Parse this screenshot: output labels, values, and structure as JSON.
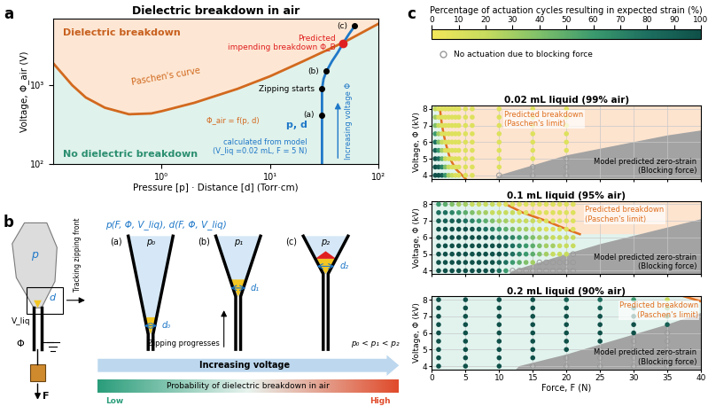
{
  "figure": {
    "panel_labels": [
      "a",
      "b",
      "c"
    ]
  },
  "chart_data": [
    {
      "type": "line",
      "title": "Dielectric breakdown in air",
      "xlabel": "Pressure [p] · Distance [d] (Torr·cm)",
      "ylabel": "Voltage, Φ_air (V)",
      "log": true,
      "grid": false,
      "xlim": [
        0.1,
        100
      ],
      "ylim": [
        100,
        7000
      ],
      "xticks": [
        {
          "value": 1,
          "label": "10⁰"
        },
        {
          "value": 10,
          "label": "10¹"
        },
        {
          "value": 100,
          "label": "10²"
        }
      ],
      "yticks": [
        {
          "value": 100,
          "label": "10²"
        },
        {
          "value": 1000,
          "label": "10³"
        }
      ],
      "regions": {
        "above": {
          "text": "Dielectric breakdown",
          "color": "#fde7d4",
          "text_color": "#c8601e"
        },
        "below": {
          "text": "No dielectric breakdown",
          "color": "#e0f2ec",
          "text_color": "#2b8f70"
        }
      },
      "series": [
        {
          "name": "Paschen's curve",
          "note": "Φ_air = f(p, d)",
          "color": "#d2691e",
          "x": [
            0.1,
            0.15,
            0.2,
            0.3,
            0.5,
            0.8,
            1,
            2,
            5,
            10,
            20,
            50,
            100
          ],
          "values": [
            1900,
            1000,
            700,
            520,
            430,
            440,
            470,
            600,
            900,
            1300,
            2000,
            3600,
            6000
          ]
        },
        {
          "name": "p, d",
          "note": "calculated from model\n(V_liq =0.02 mL, F = 5 N)",
          "color": "#1f78c8",
          "x": [
            30,
            30,
            30,
            31,
            33,
            37,
            42,
            47,
            53,
            60
          ],
          "values": [
            100,
            400,
            900,
            1200,
            1500,
            2000,
            2600,
            3400,
            4400,
            5600
          ]
        }
      ],
      "points": [
        {
          "label": "(a)",
          "x": 30,
          "y": 420,
          "color": "#000000"
        },
        {
          "label": "Zipping starts",
          "x": 30,
          "y": 900,
          "color": "#000000"
        },
        {
          "label": "(b)",
          "x": 33,
          "y": 1500,
          "color": "#000000"
        },
        {
          "label": "Predicted\nimpending breakdown Φ_B",
          "x": 47,
          "y": 3400,
          "color": "#e02020"
        },
        {
          "label": "(c)",
          "x": 60,
          "y": 5600,
          "color": "#000000"
        }
      ],
      "arrow_text": "Increasing voltage Φ"
    },
    {
      "type": "scatter",
      "title": "0.02 mL liquid (99% air)",
      "ylabel": "Voltage, Φ (kV)",
      "xlim": [
        0,
        40
      ],
      "ylim": [
        3.8,
        8.2
      ],
      "xticks": [
        0,
        5,
        10,
        15,
        20,
        25,
        30,
        35,
        40
      ],
      "yticks": [
        4,
        5,
        6,
        7,
        8
      ],
      "grid": true,
      "tick_labels": "y",
      "background": "#e2f3ee",
      "x": [
        0.5,
        1,
        1.5,
        2,
        2.5,
        3,
        3.5,
        4,
        5,
        6,
        10,
        15,
        20
      ],
      "y": [
        4,
        4.5,
        5,
        5.5,
        6,
        6.5,
        7,
        7.5,
        8
      ],
      "values": [
        [
          100,
          100,
          90,
          60,
          30,
          20,
          10,
          10,
          10,
          10,
          null,
          null,
          null
        ],
        [
          100,
          90,
          70,
          40,
          20,
          10,
          10,
          10,
          10,
          10,
          10,
          null,
          null
        ],
        [
          100,
          80,
          50,
          20,
          10,
          10,
          10,
          10,
          10,
          10,
          10,
          10,
          null
        ],
        [
          90,
          60,
          30,
          10,
          10,
          10,
          10,
          10,
          10,
          10,
          10,
          10,
          10
        ],
        [
          80,
          40,
          20,
          10,
          10,
          10,
          10,
          10,
          10,
          10,
          10,
          10,
          10
        ],
        [
          60,
          30,
          10,
          10,
          10,
          10,
          10,
          10,
          10,
          10,
          10,
          10,
          10
        ],
        [
          40,
          20,
          10,
          10,
          10,
          10,
          10,
          10,
          10,
          10,
          10,
          10,
          10
        ],
        [
          30,
          10,
          10,
          10,
          10,
          10,
          10,
          10,
          10,
          10,
          10,
          10,
          10
        ],
        [
          20,
          10,
          10,
          10,
          10,
          10,
          10,
          10,
          10,
          10,
          10,
          10,
          10
        ]
      ],
      "breakdown": {
        "text": "Predicted breakdown\n(Paschen's limit)",
        "color": "#e07020",
        "fill": "#fde4cf",
        "x": [
          1.2,
          1.5,
          2,
          2.7,
          3.5,
          5
        ],
        "y": [
          8,
          7,
          6,
          5,
          4.4,
          3.8
        ]
      },
      "blocking": {
        "text": "Model predicted zero-strain\n(Blocking force)",
        "color": "#a3a3a3",
        "x": [
          9.5,
          10,
          15,
          20,
          25,
          30,
          35,
          40
        ],
        "y": [
          3.8,
          4,
          4.6,
          5.2,
          5.6,
          6,
          6.4,
          6.7
        ]
      }
    },
    {
      "type": "scatter",
      "title": "0.1 mL liquid (95% air)",
      "ylabel": "Voltage, Φ (kV)",
      "xlim": [
        0,
        40
      ],
      "ylim": [
        3.8,
        8.2
      ],
      "xticks": [
        0,
        5,
        10,
        15,
        20,
        25,
        30,
        35,
        40
      ],
      "yticks": [
        4,
        5,
        6,
        7,
        8
      ],
      "grid": true,
      "tick_labels": "y",
      "background": "#e2f3ee",
      "x": [
        1,
        2,
        3,
        4,
        5,
        6,
        7,
        8,
        9,
        10,
        11,
        12,
        13,
        14,
        15,
        16,
        17,
        18,
        19,
        20,
        21
      ],
      "y": [
        4,
        4.5,
        5,
        5.5,
        6,
        6.5,
        7,
        7.5,
        8
      ],
      "values": [
        [
          100,
          100,
          100,
          100,
          100,
          100,
          100,
          100,
          100,
          80,
          60,
          null,
          null,
          null,
          null,
          null,
          null,
          null,
          null,
          null,
          null
        ],
        [
          100,
          100,
          100,
          100,
          100,
          100,
          100,
          100,
          100,
          90,
          80,
          60,
          50,
          40,
          30,
          null,
          null,
          null,
          null,
          null,
          null
        ],
        [
          100,
          100,
          100,
          100,
          100,
          100,
          100,
          100,
          100,
          100,
          90,
          80,
          70,
          60,
          50,
          40,
          30,
          20,
          20,
          20,
          null
        ],
        [
          100,
          100,
          100,
          100,
          100,
          100,
          100,
          100,
          100,
          100,
          90,
          80,
          70,
          60,
          50,
          40,
          30,
          30,
          20,
          20,
          20
        ],
        [
          100,
          100,
          100,
          100,
          100,
          100,
          100,
          100,
          90,
          80,
          80,
          70,
          60,
          50,
          40,
          30,
          30,
          20,
          20,
          20,
          20
        ],
        [
          100,
          100,
          100,
          100,
          100,
          100,
          90,
          80,
          70,
          60,
          50,
          40,
          30,
          30,
          20,
          20,
          10,
          10,
          10,
          10,
          10
        ],
        [
          90,
          90,
          90,
          90,
          80,
          70,
          60,
          50,
          40,
          30,
          30,
          20,
          20,
          20,
          20,
          10,
          10,
          10,
          10,
          10,
          10
        ],
        [
          80,
          80,
          70,
          60,
          50,
          40,
          30,
          30,
          20,
          20,
          20,
          20,
          10,
          10,
          10,
          10,
          10,
          10,
          10,
          10,
          10
        ],
        [
          60,
          50,
          40,
          30,
          30,
          20,
          20,
          20,
          20,
          10,
          10,
          10,
          10,
          10,
          10,
          10,
          10,
          10,
          10,
          10,
          10
        ]
      ],
      "breakdown": {
        "text": "Predicted breakdown\n(Paschen's limit)",
        "color": "#e07020",
        "fill": "#fde4cf",
        "x": [
          11,
          13.5,
          17,
          20,
          22
        ],
        "y": [
          8,
          7.5,
          7,
          6.5,
          6.2
        ]
      },
      "blocking": {
        "text": "Model predicted zero-strain\n(Blocking force)",
        "color": "#a3a3a3",
        "x": [
          11.5,
          12,
          16,
          20,
          25,
          30,
          35,
          40
        ],
        "y": [
          3.8,
          4,
          4.5,
          5,
          5.6,
          6.1,
          6.6,
          7.1
        ]
      }
    },
    {
      "type": "scatter",
      "title": "0.2 mL liquid (90% air)",
      "xlabel": "Force, F (N)",
      "ylabel": "Voltage, Φ (kV)",
      "xlim": [
        0,
        40
      ],
      "ylim": [
        3.8,
        8.2
      ],
      "xticks": [
        0,
        5,
        10,
        15,
        20,
        25,
        30,
        35,
        40
      ],
      "yticks": [
        4,
        5,
        6,
        7,
        8
      ],
      "grid": true,
      "background": "#e2f3ee",
      "x": [
        1,
        5,
        10,
        15,
        20,
        25,
        30,
        35
      ],
      "y": [
        4,
        4.5,
        5,
        5.5,
        6,
        6.5,
        7,
        7.5,
        8
      ],
      "values": [
        [
          100,
          100,
          100,
          null,
          null,
          null,
          null,
          null
        ],
        [
          100,
          100,
          100,
          100,
          null,
          null,
          null,
          null
        ],
        [
          100,
          100,
          100,
          100,
          100,
          null,
          null,
          null
        ],
        [
          100,
          100,
          100,
          100,
          100,
          100,
          null,
          null
        ],
        [
          100,
          100,
          100,
          100,
          100,
          100,
          100,
          null
        ],
        [
          100,
          100,
          100,
          100,
          100,
          100,
          100,
          90
        ],
        [
          100,
          100,
          100,
          100,
          100,
          100,
          90,
          60
        ],
        [
          100,
          100,
          100,
          100,
          100,
          90,
          80,
          40
        ],
        [
          100,
          100,
          100,
          100,
          90,
          80,
          60,
          20
        ]
      ],
      "breakdown": {
        "text": "Predicted breakdown\n(Paschen's limit)",
        "color": "#e07020",
        "fill": "#fde4cf",
        "x": [
          37.5,
          40
        ],
        "y": [
          8.2,
          7.9
        ]
      },
      "blocking": {
        "text": "Model predicted zero-strain\n(Blocking force)",
        "color": "#a3a3a3",
        "x": [
          12.5,
          13,
          20,
          25,
          30,
          35,
          40
        ],
        "y": [
          3.8,
          4,
          4.7,
          5.3,
          5.9,
          6.5,
          7.2
        ]
      }
    }
  ],
  "colorbar_c": {
    "label": "Percentage of actuation cycles resulting in expected strain (%)",
    "range": [
      0,
      100
    ],
    "ticks": [
      0,
      10,
      20,
      30,
      40,
      50,
      60,
      70,
      80,
      90,
      100
    ],
    "colors": [
      "#f2e65a",
      "#c7dc5e",
      "#7fc06a",
      "#3b9a6e",
      "#1d6f5f",
      "#0f5049"
    ],
    "hollow_marker_text": "No actuation due to blocking force",
    "hollow_color": "#9a9a9a"
  },
  "diagram_b": {
    "actuator": {
      "pressure": "p",
      "gap": "d",
      "liquid": "V_liq",
      "voltage": "Φ",
      "force": "F"
    },
    "tracking": "Tracking zipping front",
    "header": "p(F, Φ, V_liq), d(F, Φ, V_liq)",
    "stages": [
      {
        "label": "(a)",
        "pressure": "p₀",
        "gap": "d₀"
      },
      {
        "label": "(b)",
        "pressure": "p₁",
        "gap": "d₁"
      },
      {
        "label": "(c)",
        "pressure": "p₂",
        "gap": "d₂"
      }
    ],
    "progress": "Zipping progresses",
    "relation": "p₀ < p₁ < p₂",
    "voltage_arrow": "Increasing voltage",
    "probability": {
      "text": "Probability of dielectric breakdown in air",
      "low": "Low",
      "high": "High"
    }
  }
}
